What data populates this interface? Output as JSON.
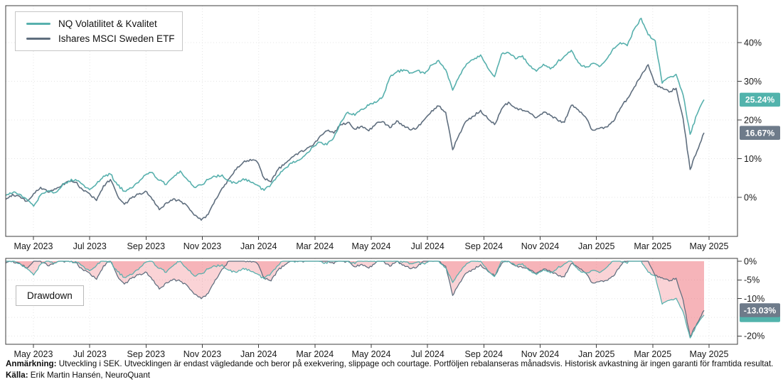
{
  "colors": {
    "nq": "#57b0ad",
    "etf": "#5f6e7e",
    "nq_badge": "#52b3ac",
    "etf_badge": "#6e7b8a",
    "drawdown_fill": "#f06e76",
    "grid": "#e4e4e4",
    "frame": "#3c3c3c",
    "tick_text": "#191919"
  },
  "legend": {
    "items": [
      {
        "label": "NQ Volatilitet & Kvalitet",
        "series": "nq"
      },
      {
        "label": "Ishares MSCI Sweden ETF",
        "series": "etf"
      }
    ]
  },
  "drawdown_label": "Drawdown",
  "footer": {
    "note_label": "Anmärkning:",
    "note_text": " Utveckling i SEK. Utvecklingen är endast vägledande och beror på exekvering, slippage och courtage. Portföljen rebalanseras månadsvis. Historisk avkastning är ingen garanti för framtida resultat.",
    "source_label": "Källa:",
    "source_text": " Erik Martin Hansén, NeuroQuant"
  },
  "chart_data": [
    {
      "type": "line",
      "title": "",
      "x_ticks": [
        "May 2023",
        "Jul 2023",
        "Sep 2023",
        "Nov 2023",
        "Jan 2024",
        "Mar 2024",
        "May 2024",
        "Jul 2024",
        "Sep 2024",
        "Nov 2024",
        "Jan 2025",
        "Mar 2025",
        "May 2025"
      ],
      "y_ticks": [
        "0%",
        "10%",
        "20%",
        "30%",
        "40%"
      ],
      "y_tick_values": [
        0,
        10,
        20,
        30,
        40
      ],
      "ylim": [
        -10,
        49.5
      ],
      "grid": true,
      "legend_position": "top-left",
      "unit": "% cumulative return, weekly samples Apr 2023 - late Apr 2025",
      "series": [
        {
          "name": "NQ Volatilitet & Kvalitet",
          "color_key": "nq",
          "end_label": "25.24%",
          "values": [
            0.5,
            1.2,
            0.8,
            -0.5,
            -2.3,
            0.6,
            1.6,
            1.2,
            2.8,
            4.2,
            4.6,
            3.4,
            2.0,
            3.5,
            5.5,
            6.0,
            3.2,
            1.6,
            2.4,
            3.8,
            5.8,
            6.4,
            4.4,
            3.3,
            5.2,
            6.8,
            4.6,
            2.6,
            3.2,
            4.6,
            5.4,
            5.8,
            4.2,
            3.6,
            4.8,
            4.0,
            3.2,
            1.8,
            3.4,
            5.6,
            7.5,
            8.8,
            9.6,
            11.2,
            13.0,
            14.2,
            13.6,
            15.5,
            19.5,
            22.0,
            21.2,
            22.8,
            23.8,
            24.5,
            26.0,
            31.0,
            32.4,
            33.0,
            32.2,
            32.8,
            32.0,
            34.2,
            35.4,
            33.0,
            27.7,
            31.5,
            34.5,
            35.6,
            36.8,
            33.5,
            31.2,
            37.0,
            37.4,
            35.8,
            36.6,
            34.0,
            32.6,
            34.4,
            33.2,
            35.0,
            36.5,
            38.0,
            34.8,
            33.6,
            34.6,
            33.8,
            35.6,
            38.5,
            40.0,
            39.2,
            43.5,
            46.3,
            42.0,
            40.5,
            29.5,
            31.0,
            31.8,
            26.5,
            16.3,
            21.5,
            25.24
          ]
        },
        {
          "name": "Ishares MSCI Sweden ETF",
          "color_key": "etf",
          "end_label": "16.67%",
          "values": [
            -0.5,
            0.8,
            0.3,
            -1.0,
            1.0,
            2.6,
            1.4,
            2.2,
            3.0,
            4.2,
            3.9,
            2.0,
            1.0,
            -0.8,
            3.0,
            4.6,
            0.5,
            -1.8,
            -0.2,
            0.8,
            1.6,
            -0.6,
            -3.2,
            -1.4,
            -0.4,
            -1.0,
            -2.2,
            -4.6,
            -5.9,
            -4.4,
            -0.6,
            2.4,
            4.8,
            7.2,
            9.0,
            9.8,
            9.2,
            5.0,
            4.0,
            7.2,
            8.8,
            10.4,
            11.6,
            12.4,
            13.4,
            15.8,
            17.2,
            16.6,
            18.8,
            19.4,
            17.6,
            18.4,
            17.2,
            19.0,
            19.6,
            18.0,
            19.8,
            18.6,
            17.4,
            18.2,
            20.2,
            22.4,
            23.6,
            22.0,
            12.3,
            16.5,
            19.8,
            21.0,
            22.5,
            20.4,
            18.8,
            22.8,
            24.6,
            23.0,
            22.4,
            21.8,
            20.6,
            22.0,
            21.2,
            20.0,
            19.4,
            23.8,
            22.6,
            20.8,
            17.4,
            17.8,
            18.2,
            19.6,
            23.0,
            25.5,
            28.5,
            31.5,
            34.3,
            29.2,
            28.4,
            27.2,
            28.2,
            20.4,
            7.2,
            12.0,
            16.67
          ]
        }
      ]
    },
    {
      "type": "area",
      "title": "Drawdown",
      "x_ticks": [
        "May 2023",
        "Jul 2023",
        "Sep 2023",
        "Nov 2023",
        "Jan 2024",
        "Mar 2024",
        "May 2024",
        "Jul 2024",
        "Sep 2024",
        "Nov 2024",
        "Jan 2025",
        "Mar 2025",
        "May 2025"
      ],
      "y_ticks": [
        "0%",
        "-5%",
        "-10%",
        "-20%"
      ],
      "y_tick_values": [
        0,
        -5,
        -10,
        -20
      ],
      "ylim": [
        -22,
        0.5
      ],
      "grid": true,
      "derived_from": "running-max drawdown of the cumulative return series above",
      "end_badge": {
        "label": "-13.03%",
        "series": "etf"
      }
    }
  ]
}
